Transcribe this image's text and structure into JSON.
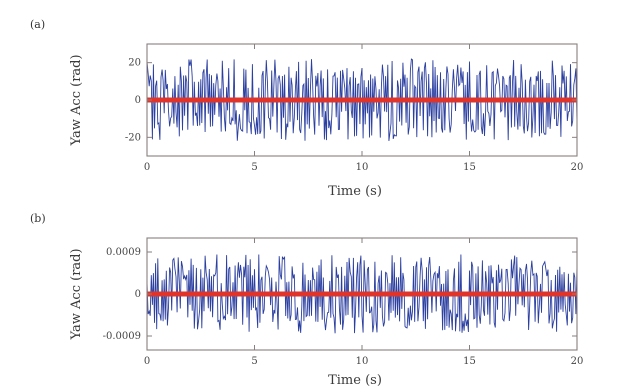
{
  "chart_data": [
    {
      "type": "line",
      "panel_label": "(a)",
      "title": "",
      "xlabel": "Time (s)",
      "ylabel": "Yaw Acc (rad)",
      "xlim": [
        0,
        20
      ],
      "ylim": [
        -30,
        30
      ],
      "xticks": [
        0,
        5,
        10,
        15,
        20
      ],
      "xtick_labels": [
        "0",
        "5",
        "10",
        "15",
        "20"
      ],
      "yticks": [
        20,
        0,
        -20
      ],
      "ytick_labels": [
        "20",
        "0",
        "-20"
      ],
      "grid": false,
      "legend": "none",
      "series": [
        {
          "style": "noisy-signal",
          "color": "#2b3fa0",
          "amplitude_envelope": [
            -22,
            22
          ],
          "samples": 400
        },
        {
          "style": "mean",
          "color": "#e0342a",
          "values": [
            [
              0,
              0
            ],
            [
              20,
              0
            ]
          ]
        }
      ]
    },
    {
      "type": "line",
      "panel_label": "(b)",
      "title": "",
      "xlabel": "Time (s)",
      "ylabel": "Yaw Acc (rad)",
      "xlim": [
        0,
        20
      ],
      "ylim": [
        -0.0012,
        0.0012
      ],
      "xticks": [
        0,
        5,
        10,
        15,
        20
      ],
      "xtick_labels": [
        "0",
        "5",
        "10",
        "15",
        "20"
      ],
      "yticks": [
        0.0009,
        0,
        -0.0009
      ],
      "ytick_labels": [
        "0.0009",
        "0",
        "-0.0009"
      ],
      "grid": false,
      "legend": "none",
      "series": [
        {
          "style": "noisy-signal",
          "color": "#2b3fa0",
          "amplitude_envelope": [
            -0.00085,
            0.00085
          ],
          "samples": 400
        },
        {
          "style": "mean",
          "color": "#e0342a",
          "values": [
            [
              0,
              0
            ],
            [
              20,
              0
            ]
          ]
        }
      ]
    }
  ]
}
